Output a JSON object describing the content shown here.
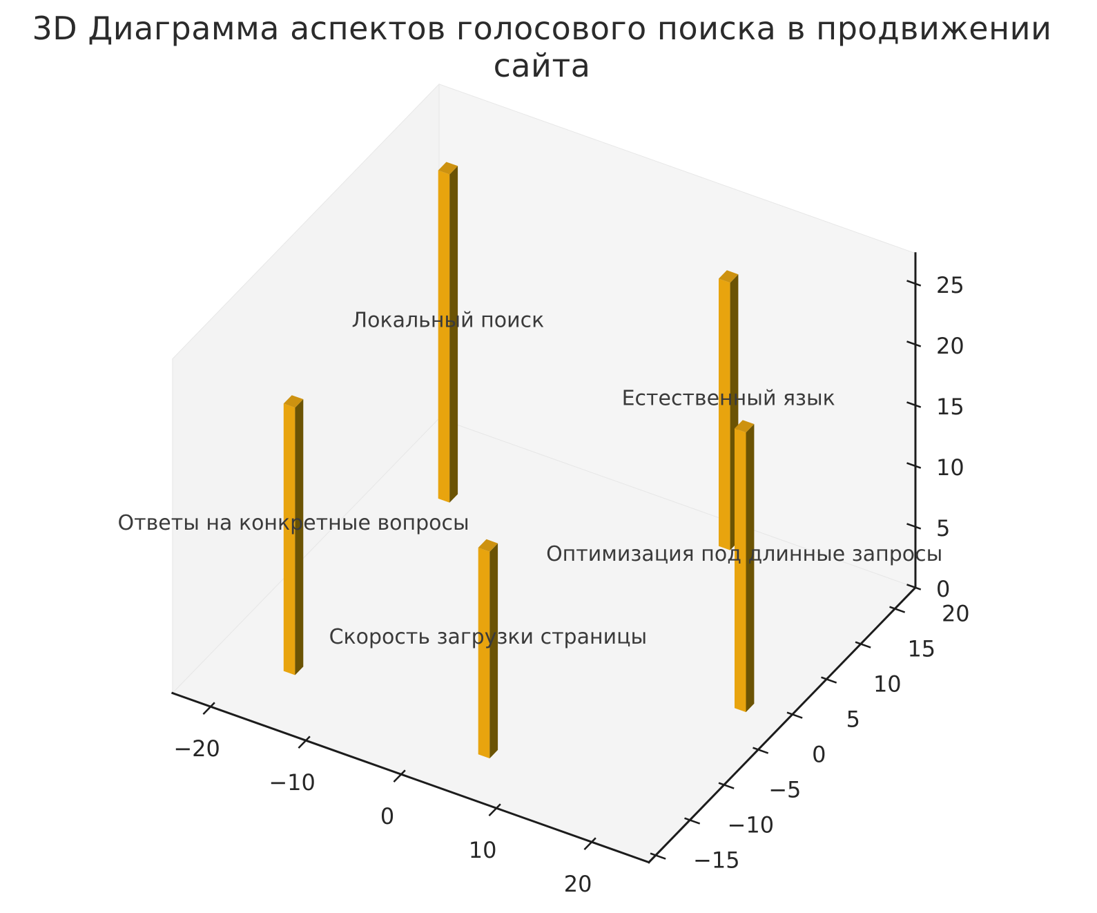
{
  "title": "3D Диаграмма аспектов голосового поиска в продвижении сайта",
  "chart_data": {
    "type": "bar",
    "projection": "3d",
    "title": "3D Диаграмма аспектов голосового поиска в продвижении сайта",
    "categories": [
      "Локальный поиск",
      "Ответы на конкретные вопросы",
      "Скорость загрузки страницы",
      "Естественный язык",
      "Оптимизация под длинные запросы"
    ],
    "values": [
      27,
      22,
      17,
      22,
      23
    ],
    "bar_positions": [
      {
        "x": -18,
        "y": 14.5
      },
      {
        "x": -17,
        "y": -9.5
      },
      {
        "x": 4.5,
        "y": -11
      },
      {
        "x": 7.5,
        "y": 20
      },
      {
        "x": 21,
        "y": 3.5
      }
    ],
    "bar_size": {
      "dx": 1.2,
      "dy": 1.2
    },
    "axis": {
      "x": {
        "ticks": [
          -20,
          -10,
          0,
          10,
          20
        ],
        "range": [
          -24,
          26
        ]
      },
      "y": {
        "ticks": [
          -15,
          -10,
          -5,
          0,
          5,
          10,
          15,
          20
        ],
        "range": [
          -16,
          23
        ]
      },
      "z": {
        "ticks": [
          0,
          5,
          10,
          15,
          20,
          25
        ],
        "range": [
          0,
          27.5
        ]
      }
    },
    "grid": false,
    "legend_position": "none",
    "colors": {
      "bar_front": "#e8a40e",
      "bar_top": "#cd9210",
      "bar_side": "#6b5304",
      "pane_left": "#f3f3f3",
      "pane_right": "#f5f5f5",
      "pane_floor": "#f4f4f4",
      "pane_edge": "#e7e7e7",
      "axis_line": "#1c1c1c",
      "tick_text": "#262626",
      "label_text": "#3a3a3a",
      "title_text": "#2b2b2b"
    }
  }
}
